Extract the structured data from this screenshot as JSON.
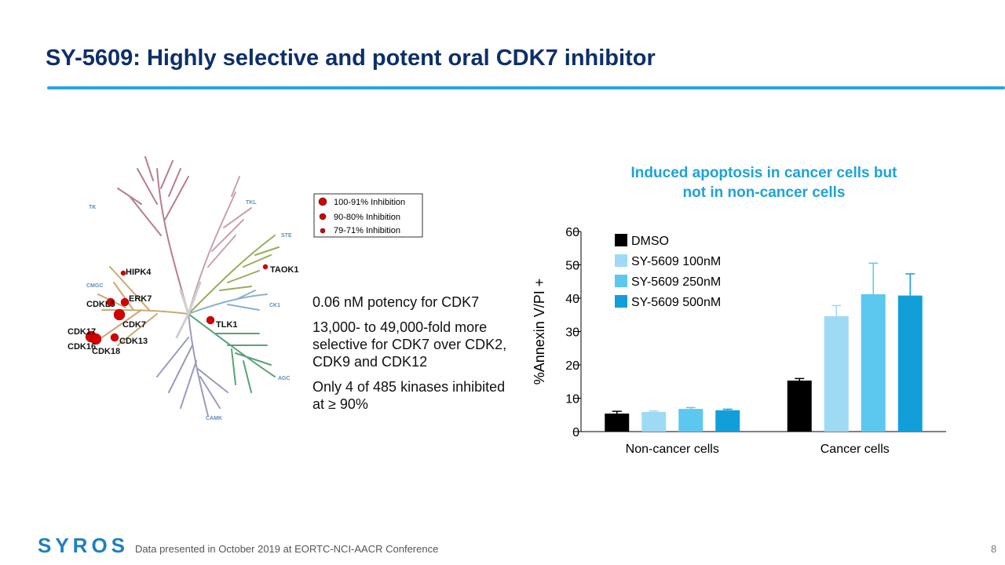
{
  "slide": {
    "title": "SY-5609: Highly selective and potent oral CDK7 inhibitor",
    "kinome": {
      "groups": [
        "TK",
        "TKL",
        "STE",
        "CMGC",
        "CK1",
        "AGC",
        "CAMK"
      ],
      "kinases": [
        "HIPK4",
        "TAOK1",
        "ERK7",
        "CDKL5",
        "CDK7",
        "TLK1",
        "CDK17",
        "CDK13",
        "CDK16",
        "CDK18"
      ],
      "legend": [
        "100-91% Inhibition",
        "90-80% Inhibition",
        "79-71% Inhibition"
      ]
    },
    "bullets": [
      "0.06 nM potency for CDK7",
      "13,000- to 49,000-fold more selective for CDK7 over CDK2, CDK9 and CDK12",
      "Only 4 of 485 kinases inhibited at ≥ 90%"
    ],
    "footer": "Data presented in October 2019 at EORTC-NCI-AACR Conference",
    "page_number": "8",
    "logo": "SYROS"
  },
  "chart_data": {
    "type": "bar",
    "title": "Induced apoptosis in cancer cells but not in non-cancer cells",
    "y_label": "%Annexin V/PI +",
    "categories": [
      "Non-cancer cells",
      "Cancer cells"
    ],
    "series": [
      {
        "name": "DMSO",
        "color": "#000000",
        "values": [
          5.4,
          15.3
        ],
        "errors": [
          0.7,
          0.6
        ]
      },
      {
        "name": "SY-5609 100nM",
        "color": "#9edaf4",
        "values": [
          5.9,
          34.6
        ],
        "errors": [
          0.3,
          3.2
        ]
      },
      {
        "name": "SY-5609 250nM",
        "color": "#5cc8f0",
        "values": [
          6.8,
          41.2
        ],
        "errors": [
          0.4,
          9.3
        ]
      },
      {
        "name": "SY-5609 500nM",
        "color": "#129fd9",
        "values": [
          6.4,
          40.8
        ],
        "errors": [
          0.3,
          6.5
        ]
      }
    ],
    "ylim": [
      0,
      60
    ],
    "yticks": [
      0,
      10,
      20,
      30,
      40,
      50,
      60
    ],
    "legend": "upper left"
  }
}
